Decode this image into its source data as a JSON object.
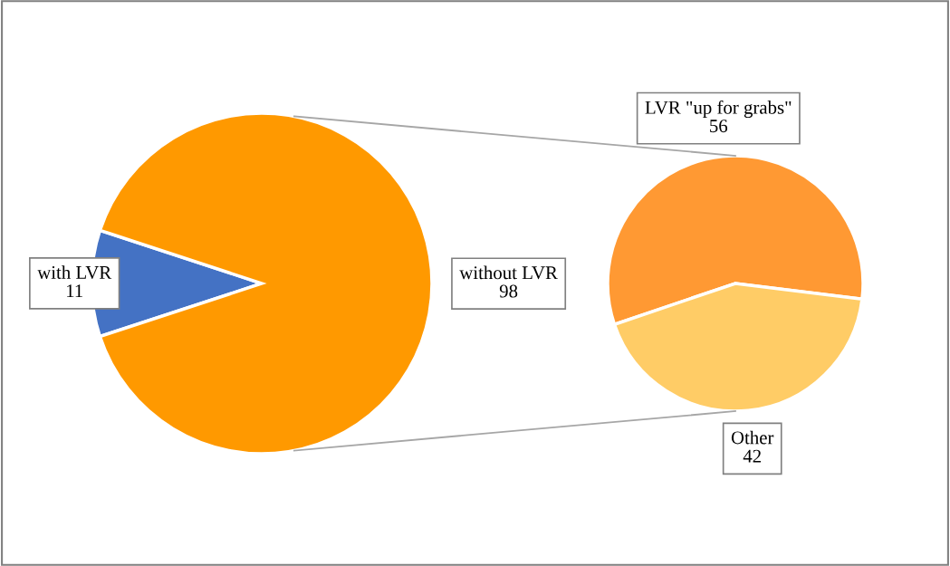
{
  "chart_data": [
    {
      "type": "pie",
      "categories": [
        "with LVR",
        "without LVR"
      ],
      "values": [
        11,
        98
      ],
      "colors": [
        "#4472c4",
        "#ff9900"
      ],
      "data_labels": true
    },
    {
      "type": "pie",
      "categories": [
        "LVR \"up for grabs\"",
        "Other"
      ],
      "values": [
        56,
        42
      ],
      "colors": [
        "#ff9933",
        "#ffcc66"
      ],
      "data_labels": true
    }
  ]
}
